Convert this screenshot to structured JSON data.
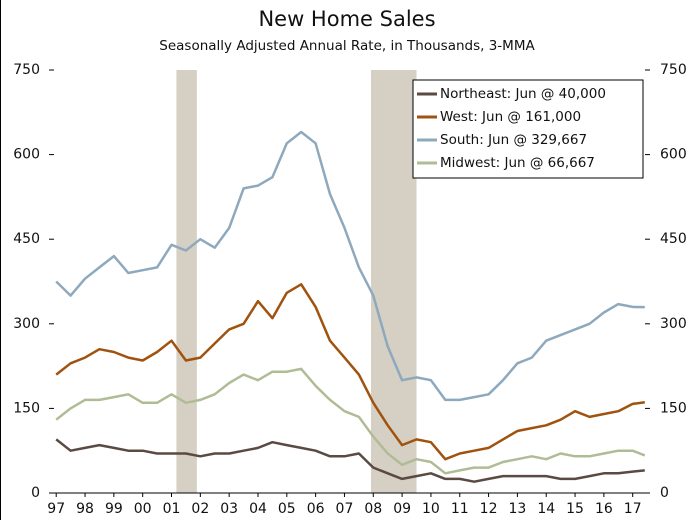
{
  "chart_data": {
    "type": "line",
    "title": "New Home Sales",
    "subtitle": "Seasonally Adjusted Annual Rate, in Thousands, 3-MMA",
    "x": [
      1997,
      1997.5,
      1998,
      1998.5,
      1999,
      1999.5,
      2000,
      2000.5,
      2001,
      2001.5,
      2002,
      2002.5,
      2003,
      2003.5,
      2004,
      2004.5,
      2005,
      2005.5,
      2006,
      2006.5,
      2007,
      2007.5,
      2008,
      2008.5,
      2009,
      2009.5,
      2010,
      2010.5,
      2011,
      2011.5,
      2012,
      2012.5,
      2013,
      2013.5,
      2014,
      2014.5,
      2015,
      2015.5,
      2016,
      2016.5,
      2017,
      2017.42
    ],
    "series": [
      {
        "name": "Northeast: Jun @ 40,000",
        "color": "#5b4a42",
        "values": [
          95,
          75,
          80,
          85,
          80,
          75,
          75,
          70,
          70,
          70,
          65,
          70,
          70,
          75,
          80,
          90,
          85,
          80,
          75,
          65,
          65,
          70,
          45,
          35,
          25,
          30,
          35,
          25,
          25,
          20,
          25,
          30,
          30,
          30,
          30,
          25,
          25,
          30,
          35,
          35,
          38,
          40
        ]
      },
      {
        "name": "West: Jun @ 161,000",
        "color": "#a0520f",
        "values": [
          210,
          230,
          240,
          255,
          250,
          240,
          235,
          250,
          270,
          235,
          240,
          265,
          290,
          300,
          340,
          310,
          355,
          370,
          330,
          270,
          240,
          210,
          160,
          120,
          85,
          95,
          90,
          60,
          70,
          75,
          80,
          95,
          110,
          115,
          120,
          130,
          145,
          135,
          140,
          145,
          158,
          161
        ]
      },
      {
        "name": "South: Jun @ 329,667",
        "color": "#8ea9bd",
        "values": [
          375,
          350,
          380,
          400,
          420,
          390,
          395,
          400,
          440,
          430,
          450,
          435,
          470,
          540,
          545,
          560,
          620,
          640,
          620,
          530,
          470,
          400,
          350,
          260,
          200,
          205,
          200,
          165,
          165,
          170,
          175,
          200,
          230,
          240,
          270,
          280,
          290,
          300,
          320,
          335,
          330,
          329.667
        ]
      },
      {
        "name": "Midwest: Jun @ 66,667",
        "color": "#b0bc96",
        "values": [
          130,
          150,
          165,
          165,
          170,
          175,
          160,
          160,
          175,
          160,
          165,
          175,
          195,
          210,
          200,
          215,
          215,
          220,
          190,
          165,
          145,
          135,
          100,
          70,
          50,
          60,
          55,
          35,
          40,
          45,
          45,
          55,
          60,
          65,
          60,
          70,
          65,
          65,
          70,
          75,
          75,
          66.667
        ]
      }
    ],
    "recessions": [
      [
        2001.17,
        2001.88
      ],
      [
        2007.92,
        2009.5
      ]
    ],
    "recession_color": "#d5d0c3",
    "xlim": [
      1996.75,
      2017.6
    ],
    "xticks": [
      {
        "value": 1997,
        "label": "97"
      },
      {
        "value": 1998,
        "label": "98"
      },
      {
        "value": 1999,
        "label": "99"
      },
      {
        "value": 2000,
        "label": "00"
      },
      {
        "value": 2001,
        "label": "01"
      },
      {
        "value": 2002,
        "label": "02"
      },
      {
        "value": 2003,
        "label": "03"
      },
      {
        "value": 2004,
        "label": "04"
      },
      {
        "value": 2005,
        "label": "05"
      },
      {
        "value": 2006,
        "label": "06"
      },
      {
        "value": 2007,
        "label": "07"
      },
      {
        "value": 2008,
        "label": "08"
      },
      {
        "value": 2009,
        "label": "09"
      },
      {
        "value": 2010,
        "label": "10"
      },
      {
        "value": 2011,
        "label": "11"
      },
      {
        "value": 2012,
        "label": "12"
      },
      {
        "value": 2013,
        "label": "13"
      },
      {
        "value": 2014,
        "label": "14"
      },
      {
        "value": 2015,
        "label": "15"
      },
      {
        "value": 2016,
        "label": "16"
      },
      {
        "value": 2017,
        "label": "17"
      }
    ],
    "ylim": [
      0,
      750
    ],
    "yticks": [
      0,
      150,
      300,
      450,
      600,
      750
    ],
    "y2lim": [
      0,
      750
    ],
    "y2ticks": [
      0,
      150,
      300,
      450,
      600,
      750
    ],
    "legend": "upper right"
  }
}
